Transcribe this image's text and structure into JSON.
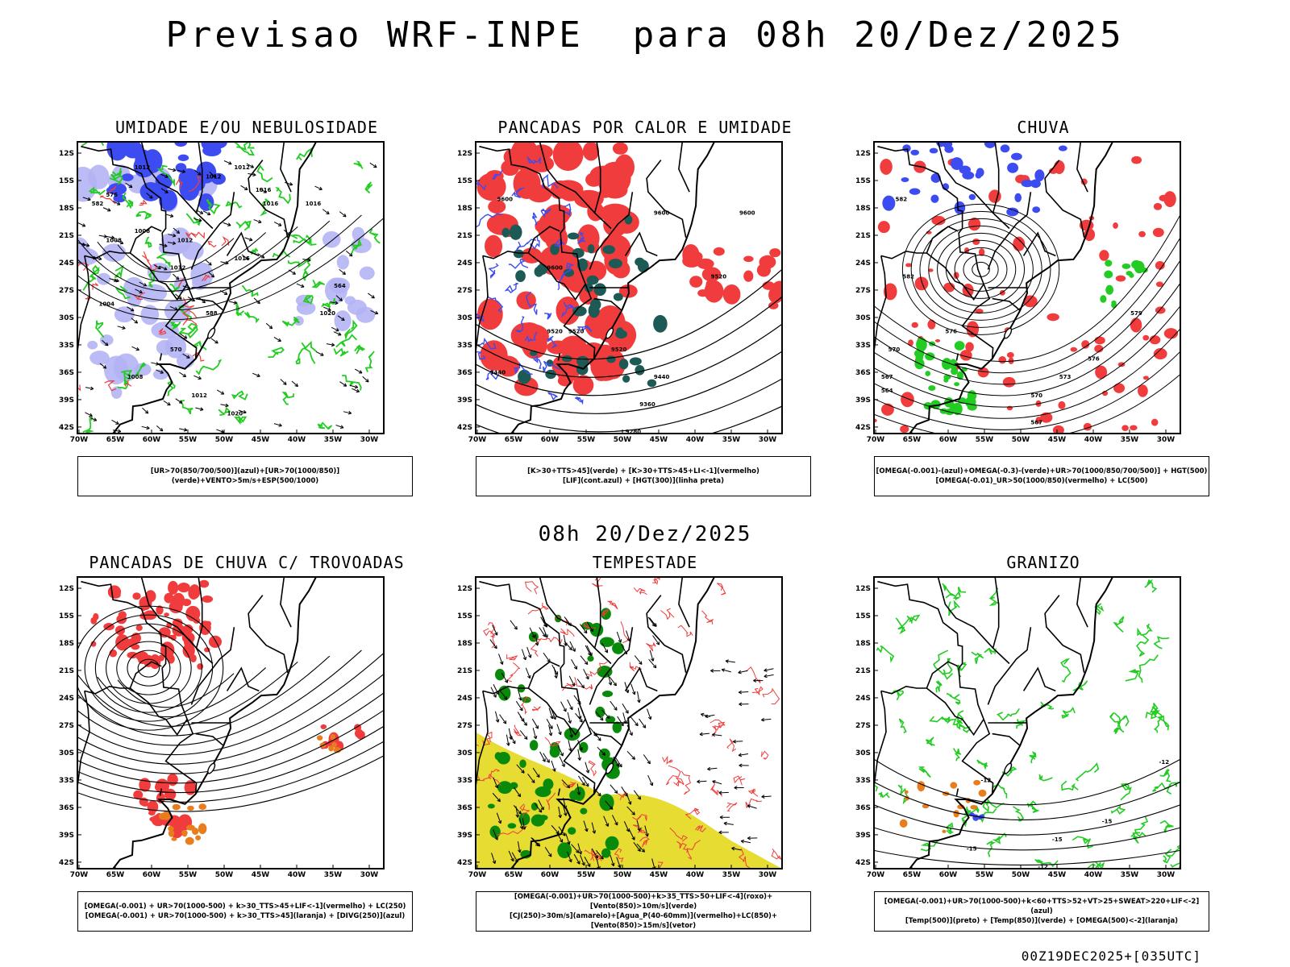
{
  "main_title": "Previsao WRF-INPE  para 08h 20/Dez/2025",
  "mid_title": "08h 20/Dez/2025",
  "footer": "00Z19DEC2025+[035UTC]",
  "lat_labels": [
    "12S",
    "15S",
    "18S",
    "21S",
    "24S",
    "27S",
    "30S",
    "33S",
    "36S",
    "39S",
    "42S"
  ],
  "lon_labels": [
    "70W",
    "65W",
    "60W",
    "55W",
    "50W",
    "45W",
    "40W",
    "35W",
    "30W"
  ],
  "colors": {
    "red": "#f03c3c",
    "green": "#22cc22",
    "blue": "#3c4cf0",
    "lightblue": "#b4b4f5",
    "teal": "#1e5a55",
    "yellow": "#e6dc32",
    "orange": "#e87d1e",
    "darkgreen": "#0a8a0a",
    "purple": "#a040c0"
  },
  "panels": [
    {
      "title": "UMIDADE E/OU NEBULOSIDADE",
      "legend": [
        "[UR>70(850/700/500)](azul)+[UR>70(1000/850)](verde)+VENTO>5m/s+ESP(500/1000)"
      ],
      "labels": [
        "1012",
        "1012",
        "1012",
        "1016",
        "1016",
        "1012",
        "1008",
        "1008",
        "1016",
        "1016",
        "1012",
        "1004",
        "1020",
        "1008",
        "1012",
        "1020",
        "576",
        "582",
        "588",
        "564",
        "570"
      ]
    },
    {
      "title": "PANCADAS POR CALOR E UMIDADE",
      "legend": [
        "[K>30+TTS>45](verde) + [K>30+TTS>45+LI<-1](vermelho)",
        "[LIF](cont.azul) + [HGT(300)](linha preta)"
      ],
      "labels": [
        "9600",
        "9600",
        "9600",
        "9520",
        "9600",
        "9520",
        "9520",
        "9440",
        "9360",
        "9280",
        "9520",
        "9440"
      ]
    },
    {
      "title": "CHUVA",
      "legend": [
        "[OMEGA(-0.001)-(azul)+OMEGA(-0.3)-(verde)+UR>70(1000/850/700/500)] + HGT(500)",
        "[OMEGA(-0.01)_UR>50(1000/850)(vermelho) + LC(500)"
      ],
      "labels": [
        "582",
        "582",
        "576",
        "570",
        "567",
        "564",
        "579",
        "576",
        "573",
        "570",
        "567"
      ]
    },
    {
      "title": "PANCADAS DE CHUVA C/ TROVOADAS",
      "legend": [
        "[OMEGA(-0.001) + UR>70(1000-500) + k>30_TTS>45+LIF<-1](vermelho) + LC(250)",
        "[OMEGA(-0.001) + UR>70(1000-500) + k>30_TTS>45](laranja) + [DIVG(250)](azul)"
      ],
      "labels": []
    },
    {
      "title": "TEMPESTADE",
      "legend": [
        "[OMEGA(-0.001)+UR>70(1000-500)+k>35_TTS>50+LIF<-4](roxo)+[Vento(850)>10m/s](verde)",
        "[CJ(250)>30m/s](amarelo)+[Agua_P(40-60mm)](vermelho)+LC(850)+[Vento(850)>15m/s](vetor)"
      ],
      "labels": []
    },
    {
      "title": "GRANIZO",
      "legend": [
        "[OMEGA(-0.001)+UR>70(1000-500)+k<60+TTS>52+VT>25+SWEAT>220+LIF<-2](azul)",
        "[Temp(500)](preto) + [Temp(850)](verde) + [OMEGA(500)<-2](laranja)"
      ],
      "labels": [
        "-12",
        "-12",
        "-15",
        "-15",
        "-15",
        "-12"
      ]
    }
  ]
}
